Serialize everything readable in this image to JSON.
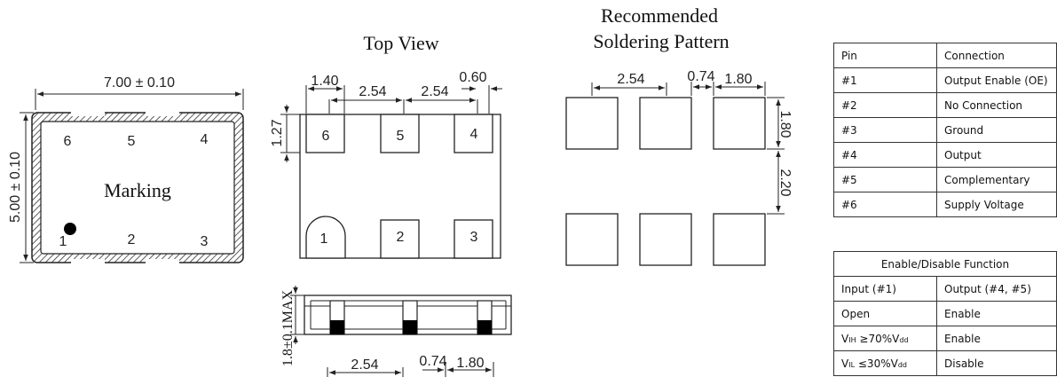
{
  "package_outline": {
    "width_dim": "7.00 ± 0.10",
    "height_dim": "5.00 ± 0.10",
    "marking": "Marking",
    "pins_top": [
      "6",
      "5",
      "4"
    ],
    "pins_bottom": [
      "1",
      "2",
      "3"
    ]
  },
  "top_view": {
    "title": "Top View",
    "dims_top": [
      "1.40",
      "2.54",
      "2.54",
      "0.60"
    ],
    "dim_left": "1.27",
    "pads_top": [
      "6",
      "5",
      "4"
    ],
    "pads_bottom": [
      "1",
      "2",
      "3"
    ]
  },
  "side_view": {
    "height_dim": "1.8±0.1MAX",
    "dims_bottom": [
      "2.54",
      "0.74",
      "1.80"
    ]
  },
  "soldering": {
    "title_line1": "Recommended",
    "title_line2": "Soldering Pattern",
    "dims_top": [
      "2.54",
      "0.74",
      "1.80"
    ],
    "dims_right": [
      "1.80",
      "2.20"
    ]
  },
  "pin_table": {
    "headers": [
      "Pin",
      "Connection"
    ],
    "rows": [
      [
        "#1",
        "Output Enable (OE)"
      ],
      [
        "#2",
        "No Connection"
      ],
      [
        "#3",
        "Ground"
      ],
      [
        "#4",
        "Output"
      ],
      [
        "#5",
        "Complementary"
      ],
      [
        "#6",
        "Supply Voltage"
      ]
    ]
  },
  "enable_table": {
    "title": "Enable/Disable Function",
    "headers": [
      "Input (#1)",
      "Output (#4, #5)"
    ],
    "row_open": [
      "Open",
      "Enable"
    ],
    "row_vih": {
      "sym": "V",
      "sub": "IH",
      "cond": "≥70%V",
      "sub2": "dd",
      "output": "Enable"
    },
    "row_vil": {
      "sym": "V",
      "sub": "IL",
      "cond": "≤30%V",
      "sub2": "dd",
      "output": "Disable"
    }
  }
}
